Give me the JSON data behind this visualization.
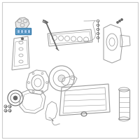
{
  "background_color": "#ffffff",
  "line_color": "#999999",
  "dark_color": "#666666",
  "highlight_fill": "#7ab8d9",
  "highlight_edge": "#3377aa",
  "light_fill": "#e8e8e8",
  "fig_w": 2.0,
  "fig_h": 2.0,
  "dpi": 100
}
